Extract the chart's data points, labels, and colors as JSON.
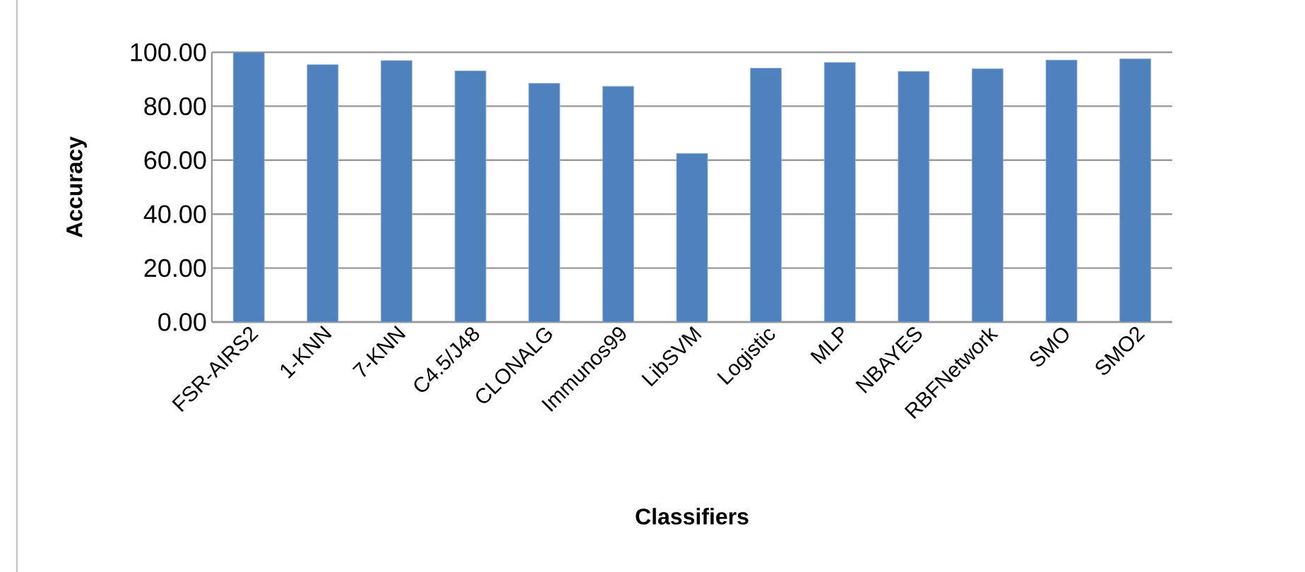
{
  "chart_data": {
    "type": "bar",
    "xlabel": "Classifiers",
    "ylabel": "Accuracy",
    "categories": [
      "FSR-AIRS2",
      "1-KNN",
      "7-KNN",
      "C4.5/J48",
      "CLONALG",
      "Immunos99",
      "LibSVM",
      "Logistic",
      "MLP",
      "NBAYES",
      "RBFNetwork",
      "SMO",
      "SMO2"
    ],
    "values": [
      100,
      95.4,
      96.9,
      93.1,
      88.5,
      87.4,
      62.5,
      94.1,
      96.2,
      92.9,
      93.9,
      97.1,
      97.6
    ],
    "color": "#4f81bd",
    "ylim": [
      0,
      100
    ],
    "yticks": [
      {
        "value": 0,
        "label": "0.00"
      },
      {
        "value": 20,
        "label": "20.00"
      },
      {
        "value": 40,
        "label": "40.00"
      },
      {
        "value": 60,
        "label": "60.00"
      },
      {
        "value": 80,
        "label": "80.00"
      },
      {
        "value": 100,
        "label": "100.00"
      }
    ],
    "grid": "y"
  }
}
